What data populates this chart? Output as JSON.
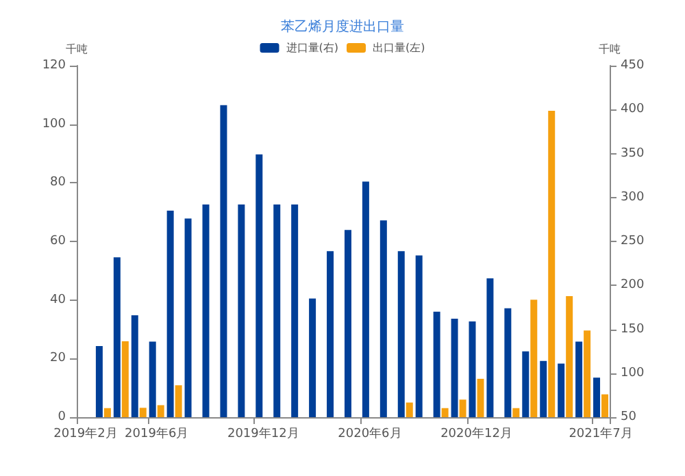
{
  "chart_data": {
    "type": "bar",
    "title": "苯乙烯月度进出口量",
    "ylabel": "千吨",
    "y2label": "千吨",
    "categories": [
      "2019年2月",
      null,
      null,
      null,
      "2019年6月",
      null,
      null,
      null,
      null,
      null,
      "2019年12月",
      null,
      null,
      null,
      null,
      null,
      "2020年6月",
      null,
      null,
      null,
      null,
      null,
      "2020年12月",
      null,
      null,
      null,
      null,
      null,
      null,
      "2021年7月"
    ],
    "series": [
      {
        "name": "进口量(右)",
        "color": "#003f98",
        "axis": "y2",
        "values": [
          null,
          131,
          232,
          166,
          136,
          285,
          276,
          292,
          405,
          292,
          349,
          292,
          292,
          185,
          239,
          263,
          318,
          274,
          239,
          234,
          170,
          162,
          159,
          208,
          174,
          125,
          114,
          111,
          136,
          95
        ]
      },
      {
        "name": "出口量(左)",
        "color": "#f5a00f",
        "values": [
          null,
          3.1,
          25.9,
          3.2,
          4.1,
          10.9,
          null,
          null,
          null,
          null,
          null,
          null,
          null,
          null,
          null,
          null,
          null,
          null,
          5.0,
          null,
          3.1,
          6.0,
          13.1,
          null,
          3.1,
          40.1,
          104.6,
          41.3,
          29.6,
          7.8
        ]
      }
    ],
    "ylim": [
      0,
      120
    ],
    "yticks": [
      0,
      20,
      40,
      60,
      80,
      100,
      120
    ],
    "y2lim": [
      50,
      450
    ],
    "y2ticks": [
      50,
      100,
      150,
      200,
      250,
      300,
      350,
      400,
      450
    ],
    "grid": false,
    "legend": "top"
  }
}
